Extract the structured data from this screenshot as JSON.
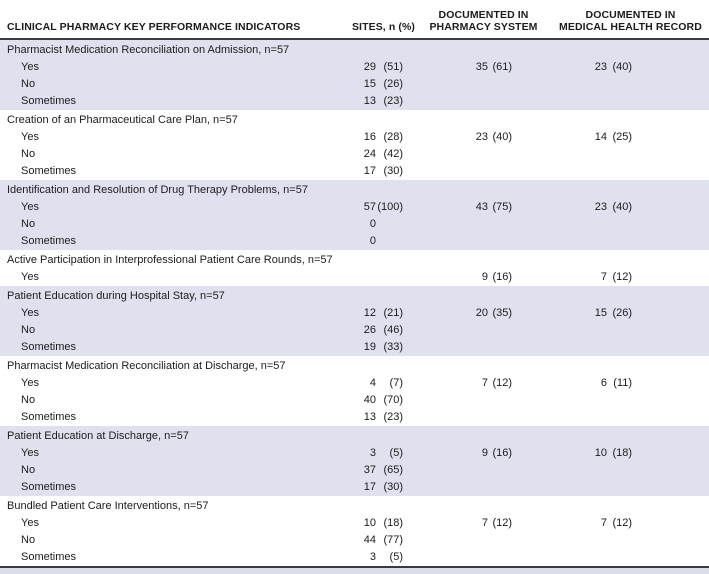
{
  "header": {
    "indicators": "CLINICAL PHARMACY KEY PERFORMANCE INDICATORS",
    "sites": "SITES, n (%)",
    "pharmacy_line1": "DOCUMENTED IN",
    "pharmacy_line2": "PHARMACY SYSTEM",
    "medical_line1": "DOCUMENTED IN",
    "medical_line2": "MEDICAL HEALTH RECORD"
  },
  "colors": {
    "shaded_row": "#dfe2ee",
    "rule": "#3a3a3a",
    "text": "#1c1c1c",
    "bottom_band": "#d9deea"
  },
  "sections": [
    {
      "title": "Pharmacist Medication Reconciliation on Admission, n=57",
      "shaded": true,
      "rows": [
        {
          "label": "Yes",
          "sites_n": "29",
          "sites_pct": "(51)",
          "pharmacy_n": "35",
          "pharmacy_pct": "(61)",
          "medical_n": "23",
          "medical_pct": "(40)"
        },
        {
          "label": "No",
          "sites_n": "15",
          "sites_pct": "(26)"
        },
        {
          "label": "Sometimes",
          "sites_n": "13",
          "sites_pct": "(23)"
        }
      ]
    },
    {
      "title": "Creation of an Pharmaceutical Care Plan, n=57",
      "shaded": false,
      "rows": [
        {
          "label": "Yes",
          "sites_n": "16",
          "sites_pct": "(28)",
          "pharmacy_n": "23",
          "pharmacy_pct": "(40)",
          "medical_n": "14",
          "medical_pct": "(25)"
        },
        {
          "label": "No",
          "sites_n": "24",
          "sites_pct": "(42)"
        },
        {
          "label": "Sometimes",
          "sites_n": "17",
          "sites_pct": "(30)"
        }
      ]
    },
    {
      "title": "Identification and Resolution of Drug Therapy Problems, n=57",
      "shaded": true,
      "rows": [
        {
          "label": "Yes",
          "sites_n": "57",
          "sites_pct": "(100)",
          "pharmacy_n": "43",
          "pharmacy_pct": "(75)",
          "medical_n": "23",
          "medical_pct": "(40)"
        },
        {
          "label": "No",
          "sites_n": "0"
        },
        {
          "label": "Sometimes",
          "sites_n": "0"
        }
      ]
    },
    {
      "title": "Active Participation in Interprofessional Patient Care Rounds, n=57",
      "shaded": false,
      "rows": [
        {
          "label": "Yes",
          "pharmacy_n": "9",
          "pharmacy_pct": "(16)",
          "medical_n": "7",
          "medical_pct": "(12)"
        }
      ]
    },
    {
      "title": "Patient Education during Hospital Stay, n=57",
      "shaded": true,
      "rows": [
        {
          "label": "Yes",
          "sites_n": "12",
          "sites_pct": "(21)",
          "pharmacy_n": "20",
          "pharmacy_pct": "(35)",
          "medical_n": "15",
          "medical_pct": "(26)"
        },
        {
          "label": "No",
          "sites_n": "26",
          "sites_pct": "(46)"
        },
        {
          "label": "Sometimes",
          "sites_n": "19",
          "sites_pct": "(33)"
        }
      ]
    },
    {
      "title": "Pharmacist Medication Reconciliation at Discharge, n=57",
      "shaded": false,
      "rows": [
        {
          "label": "Yes",
          "sites_n": "4",
          "sites_pct": "(7)",
          "pharmacy_n": "7",
          "pharmacy_pct": "(12)",
          "medical_n": "6",
          "medical_pct": "(11)"
        },
        {
          "label": "No",
          "sites_n": "40",
          "sites_pct": "(70)"
        },
        {
          "label": "Sometimes",
          "sites_n": "13",
          "sites_pct": "(23)"
        }
      ]
    },
    {
      "title": "Patient Education at Discharge, n=57",
      "shaded": true,
      "rows": [
        {
          "label": "Yes",
          "sites_n": "3",
          "sites_pct": "(5)",
          "pharmacy_n": "9",
          "pharmacy_pct": "(16)",
          "medical_n": "10",
          "medical_pct": "(18)"
        },
        {
          "label": "No",
          "sites_n": "37",
          "sites_pct": "(65)"
        },
        {
          "label": "Sometimes",
          "sites_n": "17",
          "sites_pct": "(30)"
        }
      ]
    },
    {
      "title": "Bundled Patient Care Interventions, n=57",
      "shaded": false,
      "rows": [
        {
          "label": "Yes",
          "sites_n": "10",
          "sites_pct": "(18)",
          "pharmacy_n": "7",
          "pharmacy_pct": "(12)",
          "medical_n": "7",
          "medical_pct": "(12)"
        },
        {
          "label": "No",
          "sites_n": "44",
          "sites_pct": "(77)"
        },
        {
          "label": "Sometimes",
          "sites_n": "3",
          "sites_pct": "(5)"
        }
      ]
    }
  ]
}
